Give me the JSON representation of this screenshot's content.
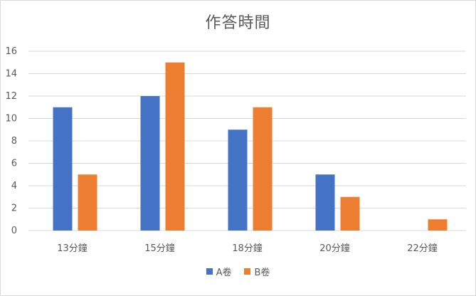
{
  "chart_data": {
    "type": "bar",
    "title": "作答時間",
    "categories": [
      "13分鐘",
      "15分鐘",
      "18分鐘",
      "20分鐘",
      "22分鐘"
    ],
    "series": [
      {
        "name": "A卷",
        "values": [
          11,
          12,
          9,
          5,
          0
        ],
        "color": "#4472c4"
      },
      {
        "name": "B卷",
        "values": [
          5,
          15,
          11,
          3,
          1
        ],
        "color": "#ed7d31"
      }
    ],
    "ylim": [
      0,
      16
    ],
    "yticks": [
      0,
      2,
      4,
      6,
      8,
      10,
      12,
      14,
      16
    ],
    "grid": true,
    "legend_position": "bottom"
  }
}
